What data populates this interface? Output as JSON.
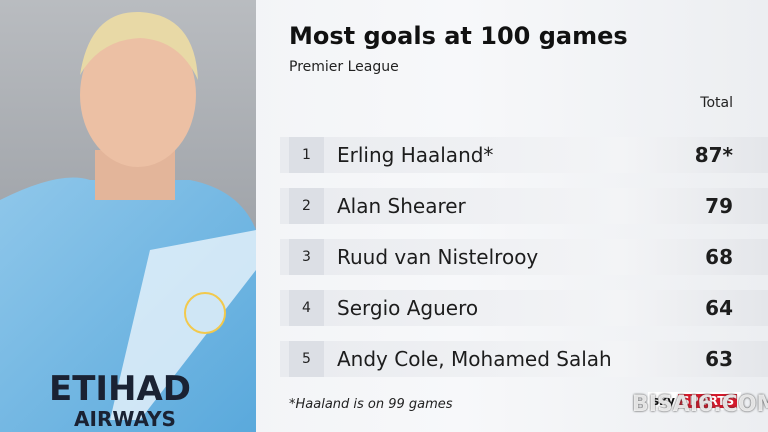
{
  "header": {
    "title": "Most goals at 100 games",
    "subtitle": "Premier League",
    "column": "Total"
  },
  "table": {
    "rows": [
      [
        1,
        "Erling Haaland*",
        "87*"
      ],
      [
        2,
        "Alan Shearer",
        79
      ],
      [
        3,
        "Ruud van Nistelrooy",
        68
      ],
      [
        4,
        "Sergio Aguero",
        64
      ],
      [
        5,
        "Andy Cole, Mohamed Salah",
        63
      ]
    ]
  },
  "footnote": "*Haaland is on 99 games",
  "photo": {
    "shirt_text": [
      "ETIHAD",
      "AIRWAYS"
    ]
  },
  "logo": {
    "brand": "sky",
    "text": "SPORTS"
  },
  "watermark": "BISAI6.COM"
}
